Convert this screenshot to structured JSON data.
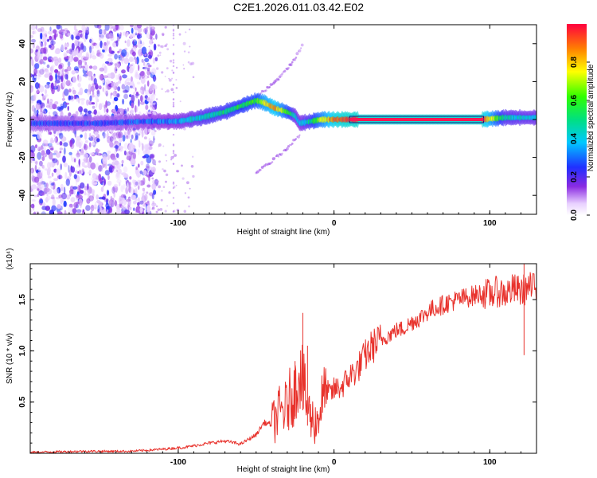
{
  "title": "C2E1.2026.011.03.42.E02",
  "colors": {
    "line": "#e8322c",
    "background": "#ffffff",
    "axis": "#000000",
    "heat_low": "#8a2be2",
    "heat_high": "#ff0000"
  },
  "chart_data": [
    {
      "type": "heatmap",
      "title": "",
      "xlabel": "Height of straight line (km)",
      "ylabel": "Frequency (Hz)",
      "xlim": [
        -195,
        130
      ],
      "ylim": [
        -50,
        50
      ],
      "xticks": [
        -100,
        0,
        100
      ],
      "xtick_labels": [
        "-100",
        "0",
        "100"
      ],
      "yticks": [
        -40,
        -20,
        0,
        20,
        40
      ],
      "ytick_labels": [
        "-40",
        "-20",
        "0",
        "20",
        "40"
      ],
      "colorbar": {
        "label": "Normalized spectral amplitude",
        "range": [
          0.0,
          1.0
        ],
        "ticks": [
          0.0,
          0.2,
          0.4,
          0.6,
          0.8
        ],
        "tick_labels": [
          "0.0",
          "0.2",
          "0.4",
          "0.6",
          "0.8"
        ],
        "colormap": "rainbow (violet to red)"
      },
      "ridge": {
        "x": [
          -195,
          -150,
          -120,
          -100,
          -85,
          -70,
          -60,
          -50,
          -45,
          -38,
          -30,
          -25,
          -22,
          -15,
          -8,
          0,
          10,
          50,
          95,
          110,
          130
        ],
        "y": [
          -2,
          -2,
          -1,
          -1,
          1,
          4,
          7,
          10,
          9,
          6,
          4,
          2,
          -2,
          -1,
          0,
          0,
          0,
          0,
          0,
          1,
          1
        ],
        "amplitude": [
          0.25,
          0.25,
          0.3,
          0.35,
          0.45,
          0.5,
          0.55,
          0.6,
          0.75,
          0.85,
          0.6,
          0.4,
          0.35,
          0.5,
          0.7,
          0.9,
          0.95,
          0.95,
          0.95,
          0.45,
          0.4
        ]
      },
      "noise_region_km": [
        -195,
        -120
      ],
      "upper_branch": {
        "x": [
          -70,
          -55,
          -45,
          -35,
          -25,
          -20
        ],
        "y": [
          3,
          8,
          15,
          22,
          32,
          40
        ]
      },
      "lower_branch": {
        "x": [
          -50,
          -40,
          -30,
          -22
        ],
        "y": [
          -28,
          -22,
          -15,
          -8
        ]
      }
    },
    {
      "type": "line",
      "title": "",
      "xlabel": "Height of straight line (km)",
      "ylabel": "SNR (10 * v/v)",
      "scale_label": "(x10⁴)",
      "xlim": [
        -195,
        130
      ],
      "ylim": [
        0,
        1.85
      ],
      "xticks": [
        -100,
        0,
        100
      ],
      "xtick_labels": [
        "-100",
        "0",
        "100"
      ],
      "yticks": [
        0.5,
        1.0,
        1.5
      ],
      "ytick_labels": [
        "0.5",
        "1.0",
        "1.5"
      ],
      "series": [
        {
          "name": "SNR",
          "x": [
            -195,
            -160,
            -130,
            -110,
            -95,
            -80,
            -70,
            -60,
            -50,
            -45,
            -40,
            -35,
            -30,
            -28,
            -25,
            -22,
            -20,
            -18,
            -15,
            -12,
            -10,
            -8,
            -5,
            -2,
            0,
            5,
            10,
            15,
            20,
            25,
            30,
            35,
            40,
            45,
            50,
            55,
            60,
            65,
            70,
            75,
            80,
            85,
            90,
            95,
            100,
            105,
            110,
            115,
            120,
            125,
            130
          ],
          "y": [
            0.01,
            0.02,
            0.02,
            0.04,
            0.06,
            0.1,
            0.12,
            0.09,
            0.18,
            0.3,
            0.28,
            0.4,
            0.45,
            0.55,
            0.6,
            0.85,
            0.7,
            0.5,
            0.35,
            0.3,
            0.35,
            0.5,
            0.6,
            0.58,
            0.62,
            0.65,
            0.75,
            0.82,
            0.95,
            1.05,
            1.1,
            1.15,
            1.2,
            1.22,
            1.28,
            1.32,
            1.38,
            1.42,
            1.45,
            1.48,
            1.5,
            1.52,
            1.54,
            1.56,
            1.55,
            1.58,
            1.56,
            1.6,
            1.58,
            1.62,
            1.6
          ]
        }
      ],
      "spikes": [
        {
          "x": -20,
          "y": 1.37
        },
        {
          "x": -17,
          "y": 1.05
        },
        {
          "x": -25,
          "y": 0.9
        },
        {
          "x": 122,
          "y": 1.85
        }
      ]
    }
  ]
}
